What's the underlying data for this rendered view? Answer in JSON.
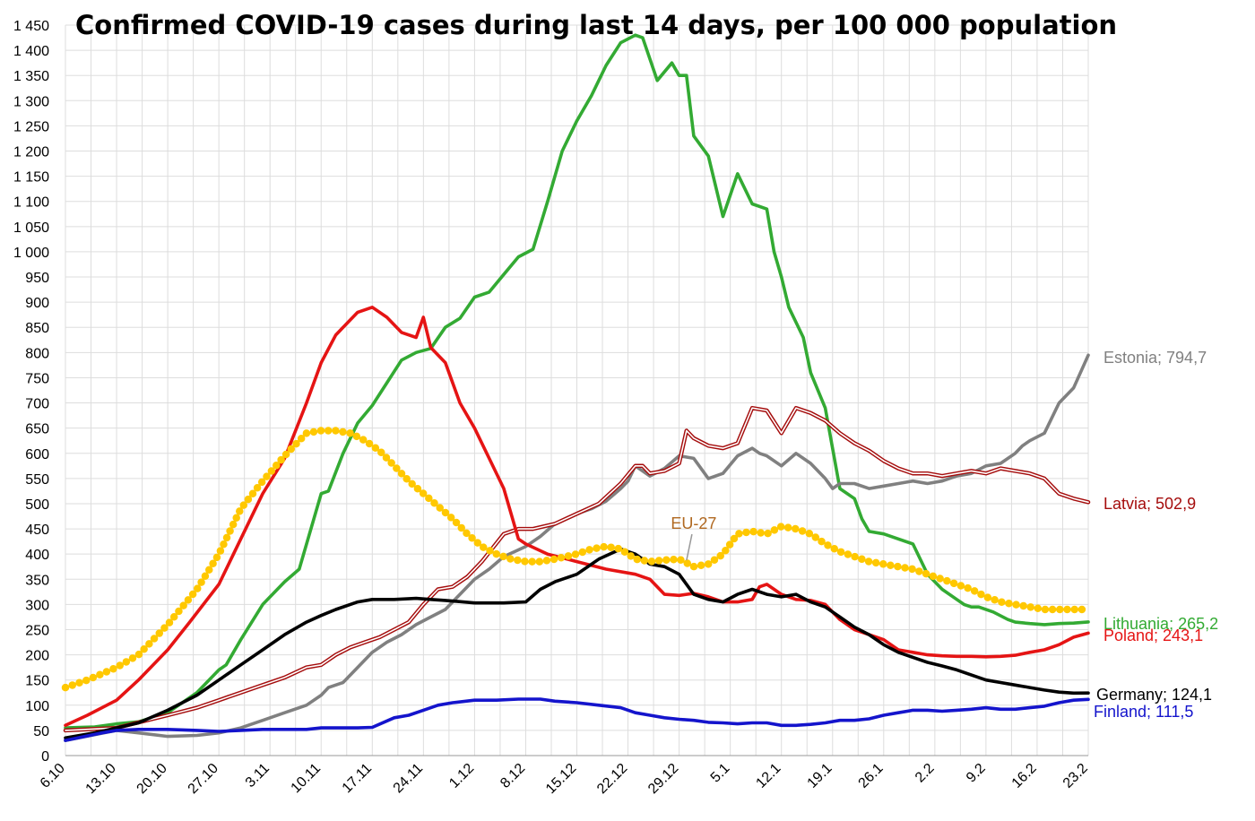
{
  "colors": {
    "Estonia": "#808080",
    "Latvia": "#a50d0d",
    "Lithuania": "#33aa33",
    "Poland": "#e51414",
    "Germany": "#000000",
    "Finland": "#1414cc",
    "EU-27": "#ffc800",
    "EU-27-label": "#b06820",
    "grid": "#dddddd"
  },
  "chart_data": {
    "type": "line",
    "title": "Confirmed COVID-19 cases during last 14 days, per 100 000 population",
    "xlabel": "",
    "ylabel": "",
    "x_range": [
      0,
      140
    ],
    "ylim": [
      0,
      1450
    ],
    "grid": true,
    "legend": "inline labels at right end of lines",
    "y_ticks": [
      0,
      50,
      100,
      150,
      200,
      250,
      300,
      350,
      400,
      450,
      500,
      550,
      600,
      650,
      700,
      750,
      800,
      850,
      900,
      950,
      1000,
      1050,
      1100,
      1150,
      1200,
      1250,
      1300,
      1350,
      1400,
      1450
    ],
    "y_tick_labels": [
      "0",
      "50",
      "100",
      "150",
      "200",
      "250",
      "300",
      "350",
      "400",
      "450",
      "500",
      "550",
      "600",
      "650",
      "700",
      "750",
      "800",
      "850",
      "900",
      "950",
      "1 000",
      "1 050",
      "1 100",
      "1 150",
      "1 200",
      "1 250",
      "1 300",
      "1 350",
      "1 400",
      "1 450"
    ],
    "x_ticks": [
      0,
      7,
      14,
      21,
      28,
      35,
      42,
      49,
      56,
      63,
      70,
      77,
      84,
      91,
      98,
      105,
      112,
      119,
      126,
      133,
      140
    ],
    "x_tick_labels": [
      "6.10",
      "13.10",
      "20.10",
      "27.10",
      "3.11",
      "10.11",
      "17.11",
      "24.11",
      "1.12",
      "8.12",
      "15.12",
      "22.12",
      "29.12",
      "5.1",
      "12.1",
      "19.1",
      "26.1",
      "2.2",
      "9.2",
      "16.2",
      "23.2"
    ],
    "series": [
      {
        "name": "Lithuania",
        "end_label": "Lithuania; 265,2",
        "style": "solid",
        "x": [
          0,
          4,
          7,
          10,
          14,
          18,
          21,
          22,
          24,
          27,
          30,
          32,
          35,
          36,
          38,
          40,
          42,
          44,
          46,
          48,
          50,
          52,
          54,
          56,
          58,
          60,
          62,
          64,
          66,
          68,
          70,
          72,
          74,
          76,
          78,
          79,
          81,
          83,
          84,
          85,
          86,
          88,
          90,
          92,
          94,
          96,
          97,
          98,
          99,
          100,
          101,
          102,
          104,
          106,
          108,
          109,
          110,
          112,
          114,
          116,
          118,
          120,
          122,
          123,
          124,
          125,
          127,
          129,
          130,
          132,
          134,
          136,
          138,
          140
        ],
        "values": [
          55,
          57,
          63,
          67,
          85,
          125,
          170,
          180,
          230,
          300,
          345,
          370,
          520,
          525,
          600,
          660,
          695,
          740,
          785,
          800,
          808,
          850,
          868,
          910,
          920,
          955,
          990,
          1005,
          1100,
          1200,
          1260,
          1310,
          1370,
          1415,
          1430,
          1425,
          1340,
          1375,
          1350,
          1350,
          1230,
          1190,
          1070,
          1155,
          1095,
          1085,
          1000,
          950,
          890,
          860,
          830,
          760,
          690,
          530,
          510,
          470,
          445,
          440,
          430,
          420,
          360,
          330,
          310,
          300,
          295,
          295,
          285,
          270,
          265,
          262,
          260,
          262,
          263,
          265.2
        ]
      },
      {
        "name": "Estonia",
        "end_label": "Estonia; 794,7",
        "style": "solid",
        "x": [
          0,
          7,
          10,
          14,
          18,
          21,
          24,
          27,
          30,
          33,
          35,
          36,
          38,
          40,
          42,
          44,
          46,
          48,
          50,
          52,
          54,
          56,
          58,
          60,
          63,
          65,
          67,
          70,
          72,
          74,
          76,
          77,
          78,
          80,
          82,
          84,
          86,
          88,
          90,
          92,
          94,
          95,
          96,
          98,
          100,
          102,
          104,
          105,
          106,
          108,
          110,
          112,
          114,
          116,
          118,
          120,
          122,
          124,
          126,
          128,
          130,
          131,
          132,
          134,
          136,
          138,
          140
        ],
        "values": [
          30,
          50,
          45,
          38,
          40,
          45,
          55,
          70,
          85,
          100,
          120,
          135,
          145,
          175,
          205,
          225,
          240,
          260,
          275,
          290,
          320,
          350,
          370,
          395,
          415,
          435,
          460,
          480,
          490,
          505,
          530,
          545,
          575,
          555,
          570,
          595,
          590,
          550,
          560,
          595,
          610,
          600,
          595,
          575,
          600,
          580,
          550,
          530,
          540,
          540,
          530,
          535,
          540,
          545,
          540,
          545,
          555,
          560,
          575,
          580,
          600,
          615,
          625,
          640,
          700,
          730,
          794.7
        ]
      },
      {
        "name": "Latvia",
        "end_label": "Latvia; 502,9",
        "style": "double",
        "x": [
          0,
          7,
          14,
          18,
          21,
          24,
          27,
          30,
          33,
          35,
          37,
          39,
          41,
          43,
          45,
          47,
          49,
          51,
          53,
          55,
          57,
          60,
          62,
          64,
          67,
          70,
          73,
          76,
          78,
          79,
          80,
          82,
          84,
          85,
          86,
          88,
          90,
          92,
          94,
          96,
          98,
          100,
          102,
          104,
          106,
          108,
          110,
          112,
          114,
          116,
          118,
          120,
          122,
          124,
          126,
          128,
          130,
          132,
          134,
          136,
          138,
          140
        ],
        "values": [
          50,
          55,
          80,
          95,
          110,
          125,
          140,
          155,
          175,
          180,
          200,
          215,
          225,
          235,
          250,
          265,
          300,
          330,
          335,
          355,
          385,
          440,
          450,
          450,
          460,
          480,
          500,
          540,
          575,
          575,
          560,
          565,
          580,
          645,
          630,
          615,
          610,
          620,
          690,
          685,
          640,
          690,
          680,
          665,
          640,
          620,
          605,
          585,
          570,
          560,
          560,
          555,
          560,
          565,
          560,
          570,
          565,
          560,
          550,
          520,
          510,
          502.9
        ]
      },
      {
        "name": "Poland",
        "end_label": "Poland; 243,1",
        "style": "solid",
        "x": [
          0,
          3,
          7,
          10,
          14,
          17,
          21,
          24,
          27,
          30,
          33,
          35,
          37,
          39,
          40,
          42,
          44,
          46,
          48,
          49,
          50,
          52,
          54,
          56,
          58,
          60,
          62,
          63,
          66,
          70,
          74,
          78,
          80,
          82,
          84,
          86,
          88,
          90,
          92,
          94,
          95,
          96,
          98,
          100,
          102,
          104,
          106,
          108,
          110,
          112,
          114,
          116,
          118,
          120,
          122,
          124,
          126,
          128,
          130,
          132,
          134,
          136,
          138,
          140
        ],
        "values": [
          60,
          80,
          110,
          150,
          210,
          265,
          340,
          430,
          520,
          590,
          700,
          780,
          835,
          865,
          880,
          890,
          870,
          840,
          830,
          870,
          810,
          780,
          700,
          650,
          590,
          530,
          430,
          420,
          400,
          385,
          370,
          360,
          350,
          320,
          318,
          322,
          315,
          305,
          305,
          310,
          335,
          340,
          320,
          310,
          308,
          300,
          270,
          250,
          240,
          230,
          210,
          205,
          200,
          198,
          197,
          197,
          196,
          197,
          199,
          205,
          210,
          220,
          235,
          243.1
        ]
      },
      {
        "name": "Germany",
        "end_label": "Germany;  124,1",
        "style": "solid",
        "x": [
          0,
          4,
          7,
          10,
          14,
          18,
          21,
          24,
          27,
          30,
          33,
          35,
          37,
          40,
          42,
          45,
          48,
          50,
          52,
          56,
          60,
          63,
          65,
          67,
          70,
          73,
          76,
          78,
          80,
          82,
          84,
          86,
          88,
          90,
          92,
          94,
          96,
          98,
          100,
          102,
          104,
          106,
          108,
          110,
          112,
          114,
          116,
          118,
          120,
          122,
          124,
          126,
          128,
          130,
          132,
          134,
          136,
          138,
          140
        ],
        "values": [
          35,
          45,
          55,
          65,
          90,
          120,
          150,
          180,
          210,
          240,
          265,
          278,
          290,
          305,
          310,
          310,
          312,
          310,
          308,
          303,
          303,
          305,
          330,
          345,
          360,
          390,
          410,
          400,
          380,
          375,
          360,
          320,
          310,
          305,
          320,
          330,
          320,
          315,
          320,
          305,
          295,
          275,
          255,
          240,
          220,
          205,
          195,
          185,
          178,
          170,
          160,
          150,
          145,
          140,
          135,
          130,
          126,
          124,
          124.1
        ]
      },
      {
        "name": "Finland",
        "end_label": "Finland; 111,5",
        "style": "solid",
        "x": [
          0,
          5,
          7,
          10,
          14,
          18,
          21,
          24,
          27,
          30,
          33,
          35,
          37,
          40,
          42,
          45,
          47,
          49,
          51,
          53,
          56,
          59,
          62,
          65,
          67,
          70,
          73,
          76,
          78,
          80,
          82,
          84,
          86,
          88,
          90,
          92,
          94,
          96,
          98,
          100,
          102,
          104,
          106,
          108,
          110,
          112,
          114,
          116,
          118,
          120,
          122,
          124,
          126,
          128,
          130,
          132,
          134,
          136,
          138,
          140
        ],
        "values": [
          30,
          45,
          50,
          52,
          52,
          50,
          48,
          50,
          52,
          52,
          52,
          55,
          55,
          55,
          56,
          75,
          80,
          90,
          100,
          105,
          110,
          110,
          112,
          112,
          108,
          105,
          100,
          95,
          85,
          80,
          75,
          72,
          70,
          66,
          65,
          63,
          65,
          65,
          60,
          60,
          62,
          65,
          70,
          70,
          73,
          80,
          85,
          90,
          90,
          88,
          90,
          92,
          95,
          92,
          92,
          95,
          98,
          105,
          110,
          111.5
        ]
      },
      {
        "name": "EU-27",
        "end_label": "EU-27",
        "style": "dotted",
        "x": [
          0,
          3,
          7,
          10,
          14,
          18,
          21,
          24,
          27,
          30,
          32,
          33,
          35,
          37,
          39,
          41,
          43,
          45,
          47,
          49,
          51,
          53,
          55,
          57,
          59,
          61,
          63,
          65,
          67,
          70,
          72,
          74,
          76,
          78,
          80,
          82,
          84,
          86,
          88,
          90,
          92,
          94,
          96,
          98,
          100,
          102,
          104,
          106,
          108,
          110,
          112,
          114,
          116,
          118,
          120,
          122,
          124,
          126,
          128,
          130,
          132,
          134,
          136,
          138,
          140
        ],
        "values": [
          135,
          150,
          175,
          200,
          260,
          330,
          400,
          490,
          545,
          595,
          625,
          640,
          645,
          645,
          640,
          625,
          605,
          575,
          545,
          520,
          495,
          470,
          440,
          415,
          400,
          390,
          385,
          385,
          390,
          400,
          410,
          415,
          410,
          390,
          385,
          388,
          390,
          375,
          380,
          400,
          440,
          445,
          440,
          455,
          450,
          440,
          420,
          405,
          395,
          385,
          380,
          375,
          370,
          360,
          350,
          340,
          330,
          315,
          305,
          300,
          295,
          290,
          290,
          290,
          290
        ]
      }
    ],
    "annotations": [
      {
        "text": "EU-27",
        "x": 86,
        "y": 450
      }
    ]
  }
}
